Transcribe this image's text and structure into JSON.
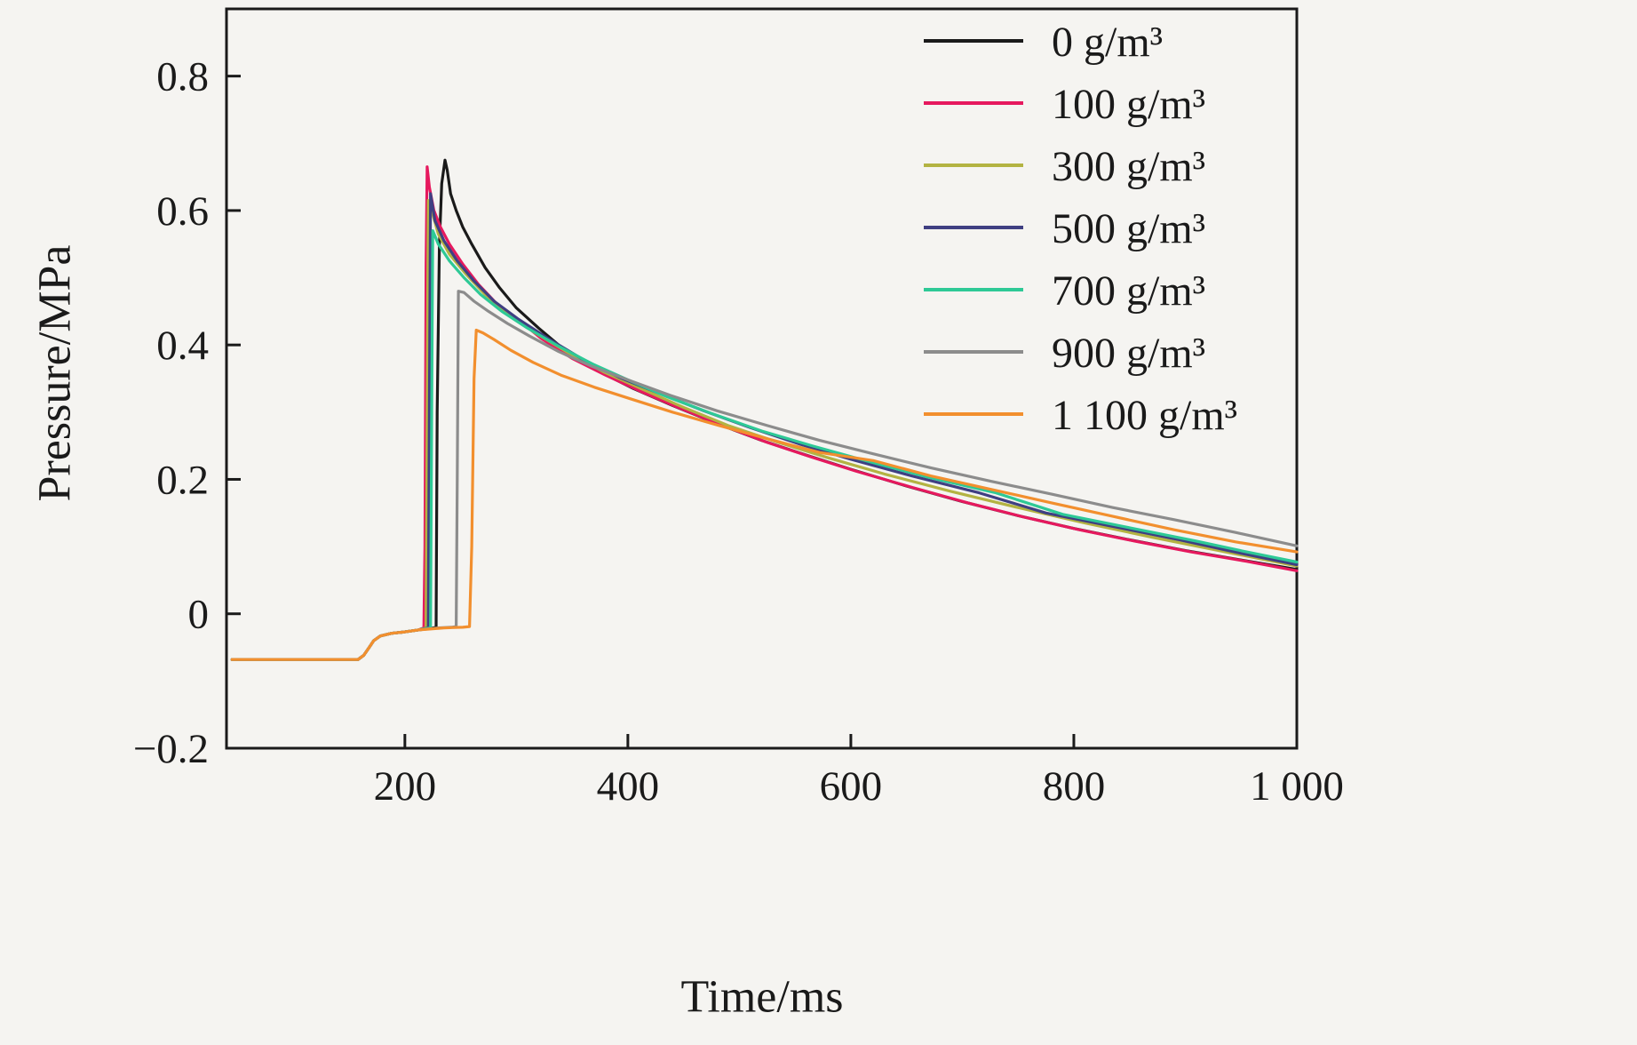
{
  "figure": {
    "background": "#f5f4f1",
    "axis_color": "#1a1a1a"
  },
  "chart_data": {
    "type": "line",
    "title": "",
    "xlabel": "Time/ms",
    "ylabel": "Pressure/MPa",
    "xlim": [
      40,
      1000
    ],
    "ylim": [
      -0.2,
      0.9
    ],
    "x_ticks": [
      200,
      400,
      600,
      800,
      1000
    ],
    "x_tick_labels": [
      "200",
      "400",
      "600",
      "800",
      "1 000"
    ],
    "y_ticks": [
      -0.2,
      0,
      0.2,
      0.4,
      0.6,
      0.8
    ],
    "y_tick_labels": [
      "−0.2",
      "0",
      "0.2",
      "0.4",
      "0.6",
      "0.8"
    ],
    "grid": false,
    "legend_position": "upper right",
    "baseline_points": [
      [
        45,
        -0.068
      ],
      [
        158,
        -0.068
      ],
      [
        163,
        -0.062
      ],
      [
        168,
        -0.05
      ],
      [
        172,
        -0.04
      ],
      [
        178,
        -0.033
      ],
      [
        188,
        -0.029
      ],
      [
        200,
        -0.027
      ],
      [
        212,
        -0.024
      ]
    ],
    "series": [
      {
        "name": "0 g/m³",
        "color": "#1a1a1a",
        "points": [
          [
            222,
            -0.022
          ],
          [
            228,
            -0.02
          ],
          [
            229,
            0.3
          ],
          [
            231,
            0.55
          ],
          [
            233,
            0.64
          ],
          [
            236,
            0.675
          ],
          [
            238,
            0.66
          ],
          [
            241,
            0.625
          ],
          [
            246,
            0.6
          ],
          [
            252,
            0.575
          ],
          [
            260,
            0.55
          ],
          [
            272,
            0.515
          ],
          [
            285,
            0.485
          ],
          [
            300,
            0.455
          ],
          [
            320,
            0.425
          ],
          [
            345,
            0.39
          ],
          [
            375,
            0.36
          ],
          [
            405,
            0.335
          ],
          [
            440,
            0.31
          ],
          [
            480,
            0.283
          ],
          [
            520,
            0.258
          ],
          [
            560,
            0.236
          ],
          [
            600,
            0.215
          ],
          [
            650,
            0.19
          ],
          [
            700,
            0.167
          ],
          [
            750,
            0.146
          ],
          [
            800,
            0.127
          ],
          [
            850,
            0.11
          ],
          [
            900,
            0.094
          ],
          [
            950,
            0.08
          ],
          [
            1000,
            0.066
          ]
        ]
      },
      {
        "name": "100 g/m³",
        "color": "#e6195e",
        "points": [
          [
            217,
            -0.021
          ],
          [
            218,
            0.1
          ],
          [
            219,
            0.52
          ],
          [
            220,
            0.665
          ],
          [
            222,
            0.635
          ],
          [
            226,
            0.6
          ],
          [
            232,
            0.575
          ],
          [
            240,
            0.55
          ],
          [
            252,
            0.52
          ],
          [
            266,
            0.49
          ],
          [
            282,
            0.462
          ],
          [
            300,
            0.44
          ],
          [
            322,
            0.41
          ],
          [
            350,
            0.38
          ],
          [
            380,
            0.355
          ],
          [
            410,
            0.332
          ],
          [
            445,
            0.307
          ],
          [
            485,
            0.28
          ],
          [
            525,
            0.255
          ],
          [
            565,
            0.233
          ],
          [
            605,
            0.212
          ],
          [
            655,
            0.188
          ],
          [
            705,
            0.165
          ],
          [
            755,
            0.144
          ],
          [
            805,
            0.125
          ],
          [
            855,
            0.108
          ],
          [
            905,
            0.092
          ],
          [
            955,
            0.078
          ],
          [
            1000,
            0.064
          ]
        ]
      },
      {
        "name": "300 g/m³",
        "color": "#b3b342",
        "points": [
          [
            219,
            -0.021
          ],
          [
            220,
            0.3
          ],
          [
            221,
            0.615
          ],
          [
            224,
            0.6
          ],
          [
            230,
            0.565
          ],
          [
            240,
            0.535
          ],
          [
            255,
            0.505
          ],
          [
            272,
            0.475
          ],
          [
            292,
            0.448
          ],
          [
            315,
            0.42
          ],
          [
            345,
            0.39
          ],
          [
            378,
            0.36
          ],
          [
            412,
            0.335
          ],
          [
            450,
            0.307
          ],
          [
            490,
            0.28
          ],
          [
            535,
            0.255
          ],
          [
            580,
            0.232
          ],
          [
            630,
            0.208
          ],
          [
            690,
            0.182
          ],
          [
            750,
            0.158
          ],
          [
            810,
            0.135
          ],
          [
            870,
            0.114
          ],
          [
            930,
            0.094
          ],
          [
            1000,
            0.071
          ]
        ]
      },
      {
        "name": "500 g/m³",
        "color": "#3f3f82",
        "points": [
          [
            221,
            -0.021
          ],
          [
            222,
            0.3
          ],
          [
            223,
            0.625
          ],
          [
            227,
            0.585
          ],
          [
            235,
            0.555
          ],
          [
            247,
            0.525
          ],
          [
            262,
            0.495
          ],
          [
            280,
            0.465
          ],
          [
            302,
            0.438
          ],
          [
            328,
            0.41
          ],
          [
            358,
            0.38
          ],
          [
            392,
            0.352
          ],
          [
            428,
            0.328
          ],
          [
            468,
            0.302
          ],
          [
            510,
            0.277
          ],
          [
            555,
            0.252
          ],
          [
            600,
            0.23
          ],
          [
            655,
            0.205
          ],
          [
            715,
            0.18
          ],
          [
            775,
            0.15
          ],
          [
            835,
            0.13
          ],
          [
            895,
            0.11
          ],
          [
            950,
            0.09
          ],
          [
            1000,
            0.073
          ]
        ]
      },
      {
        "name": "700 g/m³",
        "color": "#2ec996",
        "points": [
          [
            223,
            -0.021
          ],
          [
            224,
            0.3
          ],
          [
            225,
            0.57
          ],
          [
            230,
            0.55
          ],
          [
            240,
            0.525
          ],
          [
            253,
            0.5
          ],
          [
            268,
            0.475
          ],
          [
            287,
            0.45
          ],
          [
            310,
            0.425
          ],
          [
            338,
            0.398
          ],
          [
            368,
            0.372
          ],
          [
            400,
            0.348
          ],
          [
            435,
            0.323
          ],
          [
            475,
            0.298
          ],
          [
            520,
            0.272
          ],
          [
            565,
            0.25
          ],
          [
            615,
            0.227
          ],
          [
            670,
            0.203
          ],
          [
            730,
            0.18
          ],
          [
            790,
            0.148
          ],
          [
            850,
            0.128
          ],
          [
            910,
            0.108
          ],
          [
            955,
            0.092
          ],
          [
            1000,
            0.077
          ]
        ]
      },
      {
        "name": "900 g/m³",
        "color": "#8c8c8c",
        "points": [
          [
            230,
            -0.021
          ],
          [
            242,
            -0.02
          ],
          [
            246,
            -0.019
          ],
          [
            247,
            0.2
          ],
          [
            248,
            0.48
          ],
          [
            253,
            0.478
          ],
          [
            262,
            0.465
          ],
          [
            275,
            0.45
          ],
          [
            292,
            0.432
          ],
          [
            312,
            0.413
          ],
          [
            338,
            0.39
          ],
          [
            368,
            0.368
          ],
          [
            400,
            0.348
          ],
          [
            438,
            0.325
          ],
          [
            480,
            0.302
          ],
          [
            525,
            0.28
          ],
          [
            572,
            0.258
          ],
          [
            620,
            0.238
          ],
          [
            672,
            0.217
          ],
          [
            726,
            0.197
          ],
          [
            780,
            0.178
          ],
          [
            835,
            0.158
          ],
          [
            890,
            0.14
          ],
          [
            945,
            0.121
          ],
          [
            1000,
            0.101
          ]
        ]
      },
      {
        "name": "1 100 g/m³",
        "color": "#f28f2e",
        "points": [
          [
            235,
            -0.021
          ],
          [
            252,
            -0.02
          ],
          [
            258,
            -0.019
          ],
          [
            260,
            0.1
          ],
          [
            262,
            0.35
          ],
          [
            264,
            0.422
          ],
          [
            270,
            0.418
          ],
          [
            280,
            0.408
          ],
          [
            295,
            0.392
          ],
          [
            315,
            0.374
          ],
          [
            340,
            0.355
          ],
          [
            370,
            0.337
          ],
          [
            402,
            0.32
          ],
          [
            440,
            0.3
          ],
          [
            482,
            0.28
          ],
          [
            526,
            0.26
          ],
          [
            572,
            0.24
          ],
          [
            620,
            0.228
          ],
          [
            672,
            0.205
          ],
          [
            726,
            0.185
          ],
          [
            780,
            0.165
          ],
          [
            835,
            0.145
          ],
          [
            890,
            0.125
          ],
          [
            945,
            0.107
          ],
          [
            1000,
            0.092
          ]
        ]
      }
    ]
  }
}
